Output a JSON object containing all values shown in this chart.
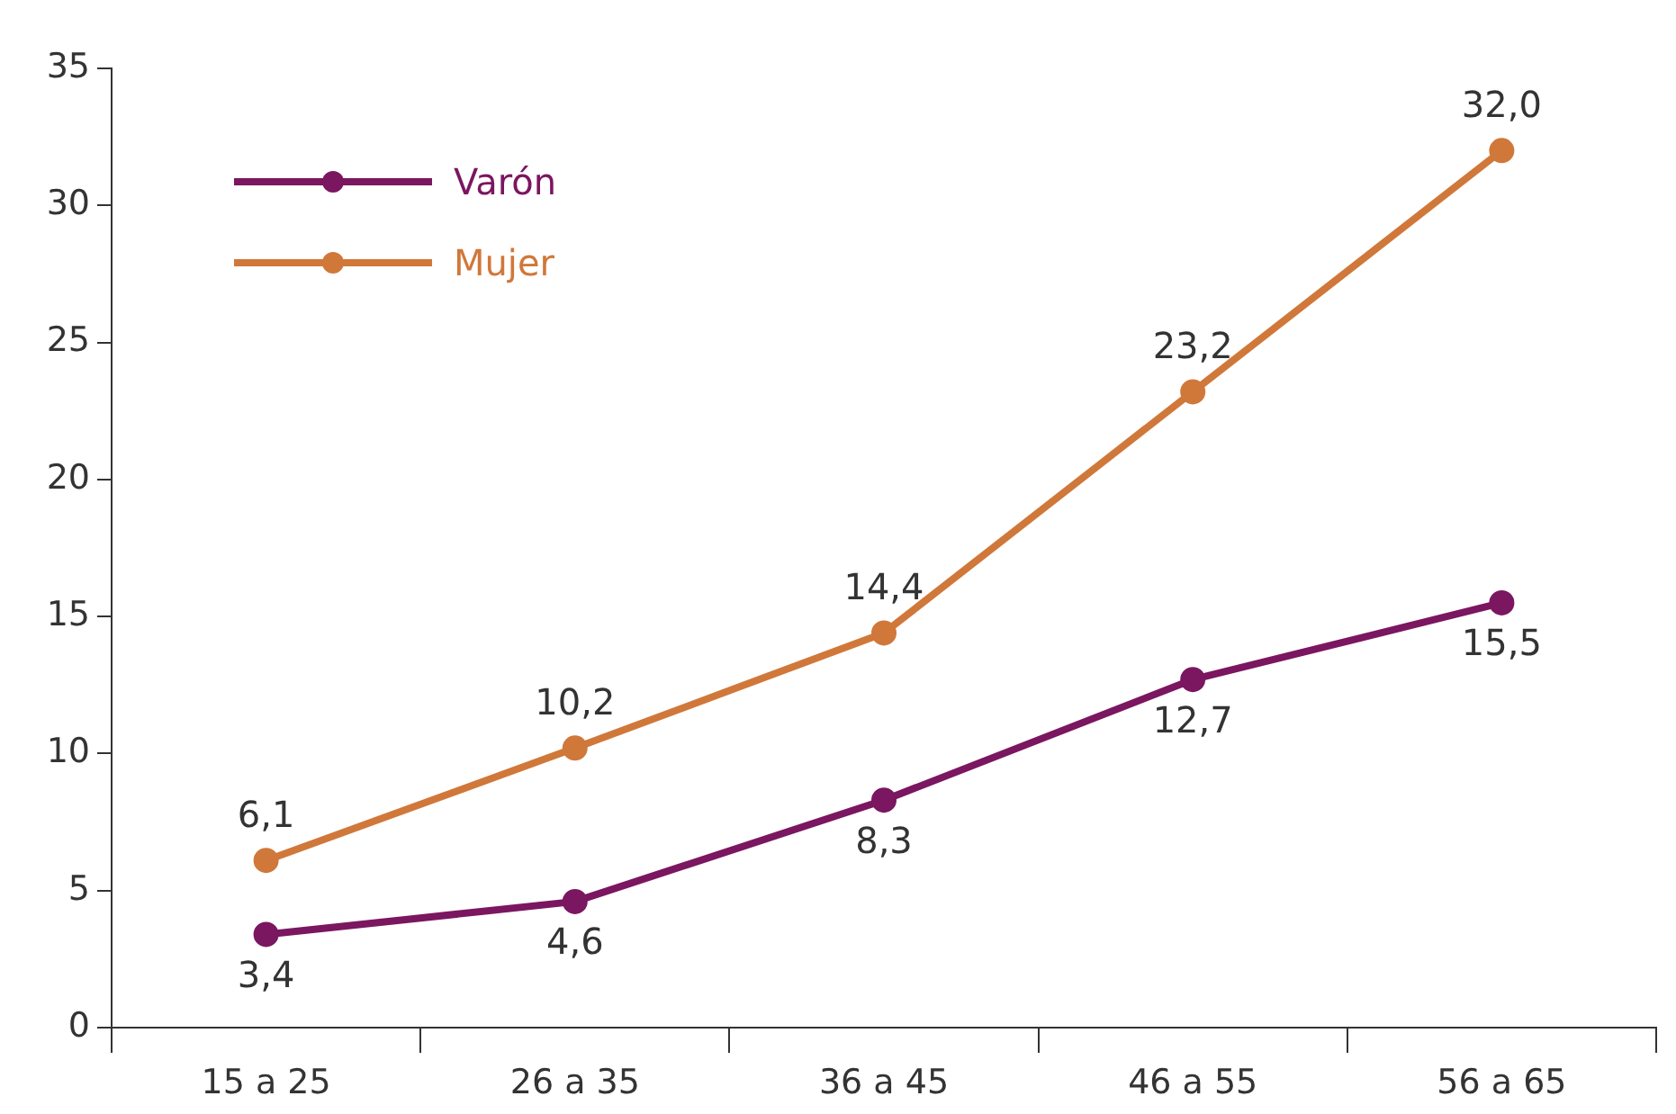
{
  "chart_data": {
    "type": "line",
    "categories": [
      "15 a 25",
      "26 a 35",
      "36 a 45",
      "46 a 55",
      "56 a 65"
    ],
    "series": [
      {
        "name": "Varón",
        "color": "#7b1660",
        "values": [
          3.4,
          4.6,
          8.3,
          12.7,
          15.5
        ],
        "value_labels": [
          "3,4",
          "4,6",
          "8,3",
          "12,7",
          "15,5"
        ]
      },
      {
        "name": "Mujer",
        "color": "#d0783a",
        "values": [
          6.1,
          10.2,
          14.4,
          23.2,
          32.0
        ],
        "value_labels": [
          "6,1",
          "10,2",
          "14,4",
          "23,2",
          "32,0"
        ]
      }
    ],
    "ylim": [
      0,
      35
    ],
    "yticks": [
      0,
      5,
      10,
      15,
      20,
      25,
      30,
      35
    ],
    "grid": false,
    "legend": "top left",
    "marker": "circle",
    "line_style": "solid"
  }
}
